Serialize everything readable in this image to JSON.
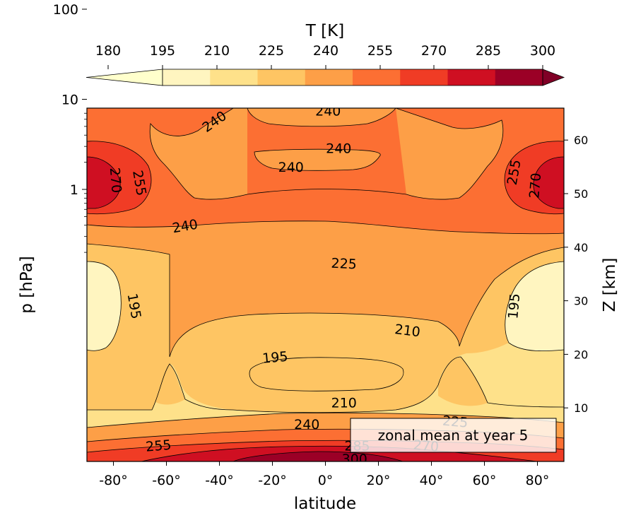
{
  "chart_data": {
    "type": "contourf",
    "colorbar": {
      "label": "T [K]",
      "levels": [
        180,
        195,
        210,
        225,
        240,
        255,
        270,
        285,
        300
      ],
      "colors": [
        "#fff5c0",
        "#fee18a",
        "#fec563",
        "#fd9f47",
        "#fc6f33",
        "#f03c25",
        "#cf0f22",
        "#9b0026"
      ],
      "extend": "both",
      "under_color": "#ffffcc",
      "over_color": "#800026"
    },
    "x": {
      "label": "latitude",
      "range": [
        -90,
        90
      ],
      "ticks": [
        -80,
        -60,
        -40,
        -20,
        0,
        20,
        40,
        60,
        80
      ],
      "tick_labels": [
        "-80°",
        "-60°",
        "-40°",
        "-20°",
        "0°",
        "20°",
        "40°",
        "60°",
        "80°"
      ]
    },
    "y_left": {
      "label": "p  [hPa]",
      "scale": "log",
      "inverted": true,
      "ticks": [
        1,
        10,
        100
      ],
      "tick_labels": [
        "1",
        "10",
        "100"
      ]
    },
    "y_right": {
      "label": "Z [km]",
      "ticks": [
        10,
        20,
        30,
        40,
        50,
        60
      ],
      "tick_labels": [
        "10",
        "20",
        "30",
        "40",
        "50",
        "60"
      ]
    },
    "contour_labels": [
      {
        "text": "240",
        "lat": -42,
        "z": 63.5,
        "angle": -35
      },
      {
        "text": "240",
        "lat": 1,
        "z": 65.5,
        "angle": 0
      },
      {
        "text": "240",
        "lat": 5,
        "z": 58.5,
        "angle": 0
      },
      {
        "text": "240",
        "lat": -13,
        "z": 55.0,
        "angle": 0
      },
      {
        "text": "270",
        "lat": -79,
        "z": 52.5,
        "angle": 85
      },
      {
        "text": "255",
        "lat": -70,
        "z": 52.0,
        "angle": 80
      },
      {
        "text": "255",
        "lat": 71,
        "z": 54.0,
        "angle": -80
      },
      {
        "text": "270",
        "lat": 79,
        "z": 51.5,
        "angle": -85
      },
      {
        "text": "240",
        "lat": -53,
        "z": 44.0,
        "angle": -10
      },
      {
        "text": "225",
        "lat": 7,
        "z": 37.0,
        "angle": 3
      },
      {
        "text": "195",
        "lat": -72,
        "z": 29.0,
        "angle": 80
      },
      {
        "text": "195",
        "lat": 71,
        "z": 29.0,
        "angle": -85
      },
      {
        "text": "210",
        "lat": 31,
        "z": 24.5,
        "angle": 7
      },
      {
        "text": "195",
        "lat": -19,
        "z": 19.5,
        "angle": -5
      },
      {
        "text": "210",
        "lat": 7,
        "z": 11.0,
        "angle": 0
      },
      {
        "text": "240",
        "lat": -7,
        "z": 7.0,
        "angle": 0
      },
      {
        "text": "225",
        "lat": 49,
        "z": 7.5,
        "angle": 5
      },
      {
        "text": "255",
        "lat": -63,
        "z": 3.0,
        "angle": -5
      },
      {
        "text": "285",
        "lat": 12,
        "z": 3.0,
        "angle": 0
      },
      {
        "text": "300",
        "lat": 11,
        "z": 0.5,
        "angle": 0
      },
      {
        "text": "270",
        "lat": 38,
        "z": 3.0,
        "angle": 5
      }
    ],
    "annotation": "zonal mean at year 5"
  }
}
